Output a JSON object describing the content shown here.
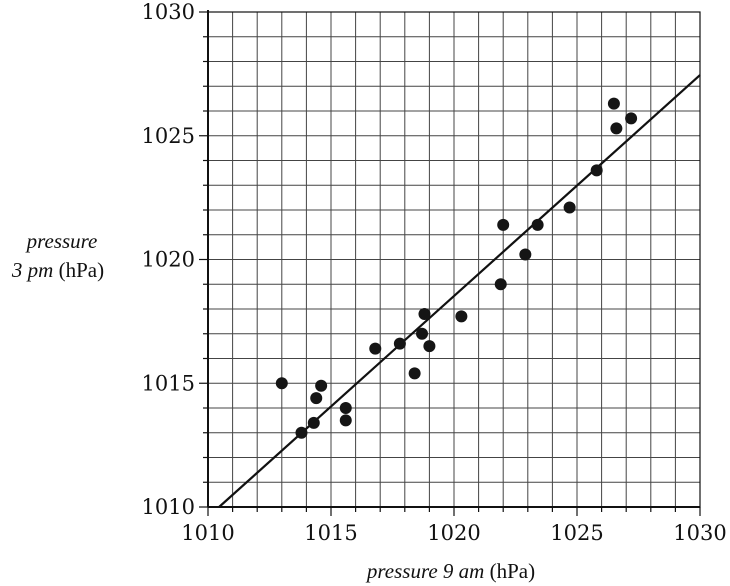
{
  "chart_data": {
    "type": "scatter",
    "title": "",
    "xlabel": {
      "italic": "pressure 9 am",
      "unit": "(hPa)"
    },
    "ylabel": {
      "line1": "pressure",
      "line2_italic": "3 pm",
      "line2_unit": "(hPa)"
    },
    "xlim": [
      1010,
      1030
    ],
    "ylim": [
      1010,
      1030
    ],
    "xticks": [
      1010,
      1015,
      1020,
      1025,
      1030
    ],
    "yticks": [
      1010,
      1015,
      1020,
      1025,
      1030
    ],
    "minor_grid_step": 1,
    "grid": true,
    "points": [
      {
        "x": 1013.0,
        "y": 1015.0
      },
      {
        "x": 1013.8,
        "y": 1013.0
      },
      {
        "x": 1014.3,
        "y": 1013.4
      },
      {
        "x": 1014.4,
        "y": 1014.4
      },
      {
        "x": 1014.6,
        "y": 1014.9
      },
      {
        "x": 1015.6,
        "y": 1014.0
      },
      {
        "x": 1015.6,
        "y": 1013.5
      },
      {
        "x": 1016.8,
        "y": 1016.4
      },
      {
        "x": 1017.8,
        "y": 1016.6
      },
      {
        "x": 1018.4,
        "y": 1015.4
      },
      {
        "x": 1018.7,
        "y": 1017.0
      },
      {
        "x": 1018.8,
        "y": 1017.8
      },
      {
        "x": 1019.0,
        "y": 1016.5
      },
      {
        "x": 1020.3,
        "y": 1017.7
      },
      {
        "x": 1021.9,
        "y": 1019.0
      },
      {
        "x": 1022.0,
        "y": 1021.4
      },
      {
        "x": 1022.9,
        "y": 1020.2
      },
      {
        "x": 1023.4,
        "y": 1021.4
      },
      {
        "x": 1024.7,
        "y": 1022.1
      },
      {
        "x": 1025.8,
        "y": 1023.6
      },
      {
        "x": 1026.5,
        "y": 1026.3
      },
      {
        "x": 1026.6,
        "y": 1025.3
      },
      {
        "x": 1027.2,
        "y": 1025.7
      }
    ],
    "trend_line": {
      "x1": 1010.45,
      "y1": 1010.0,
      "x2": 1030.0,
      "y2": 1027.45
    }
  }
}
